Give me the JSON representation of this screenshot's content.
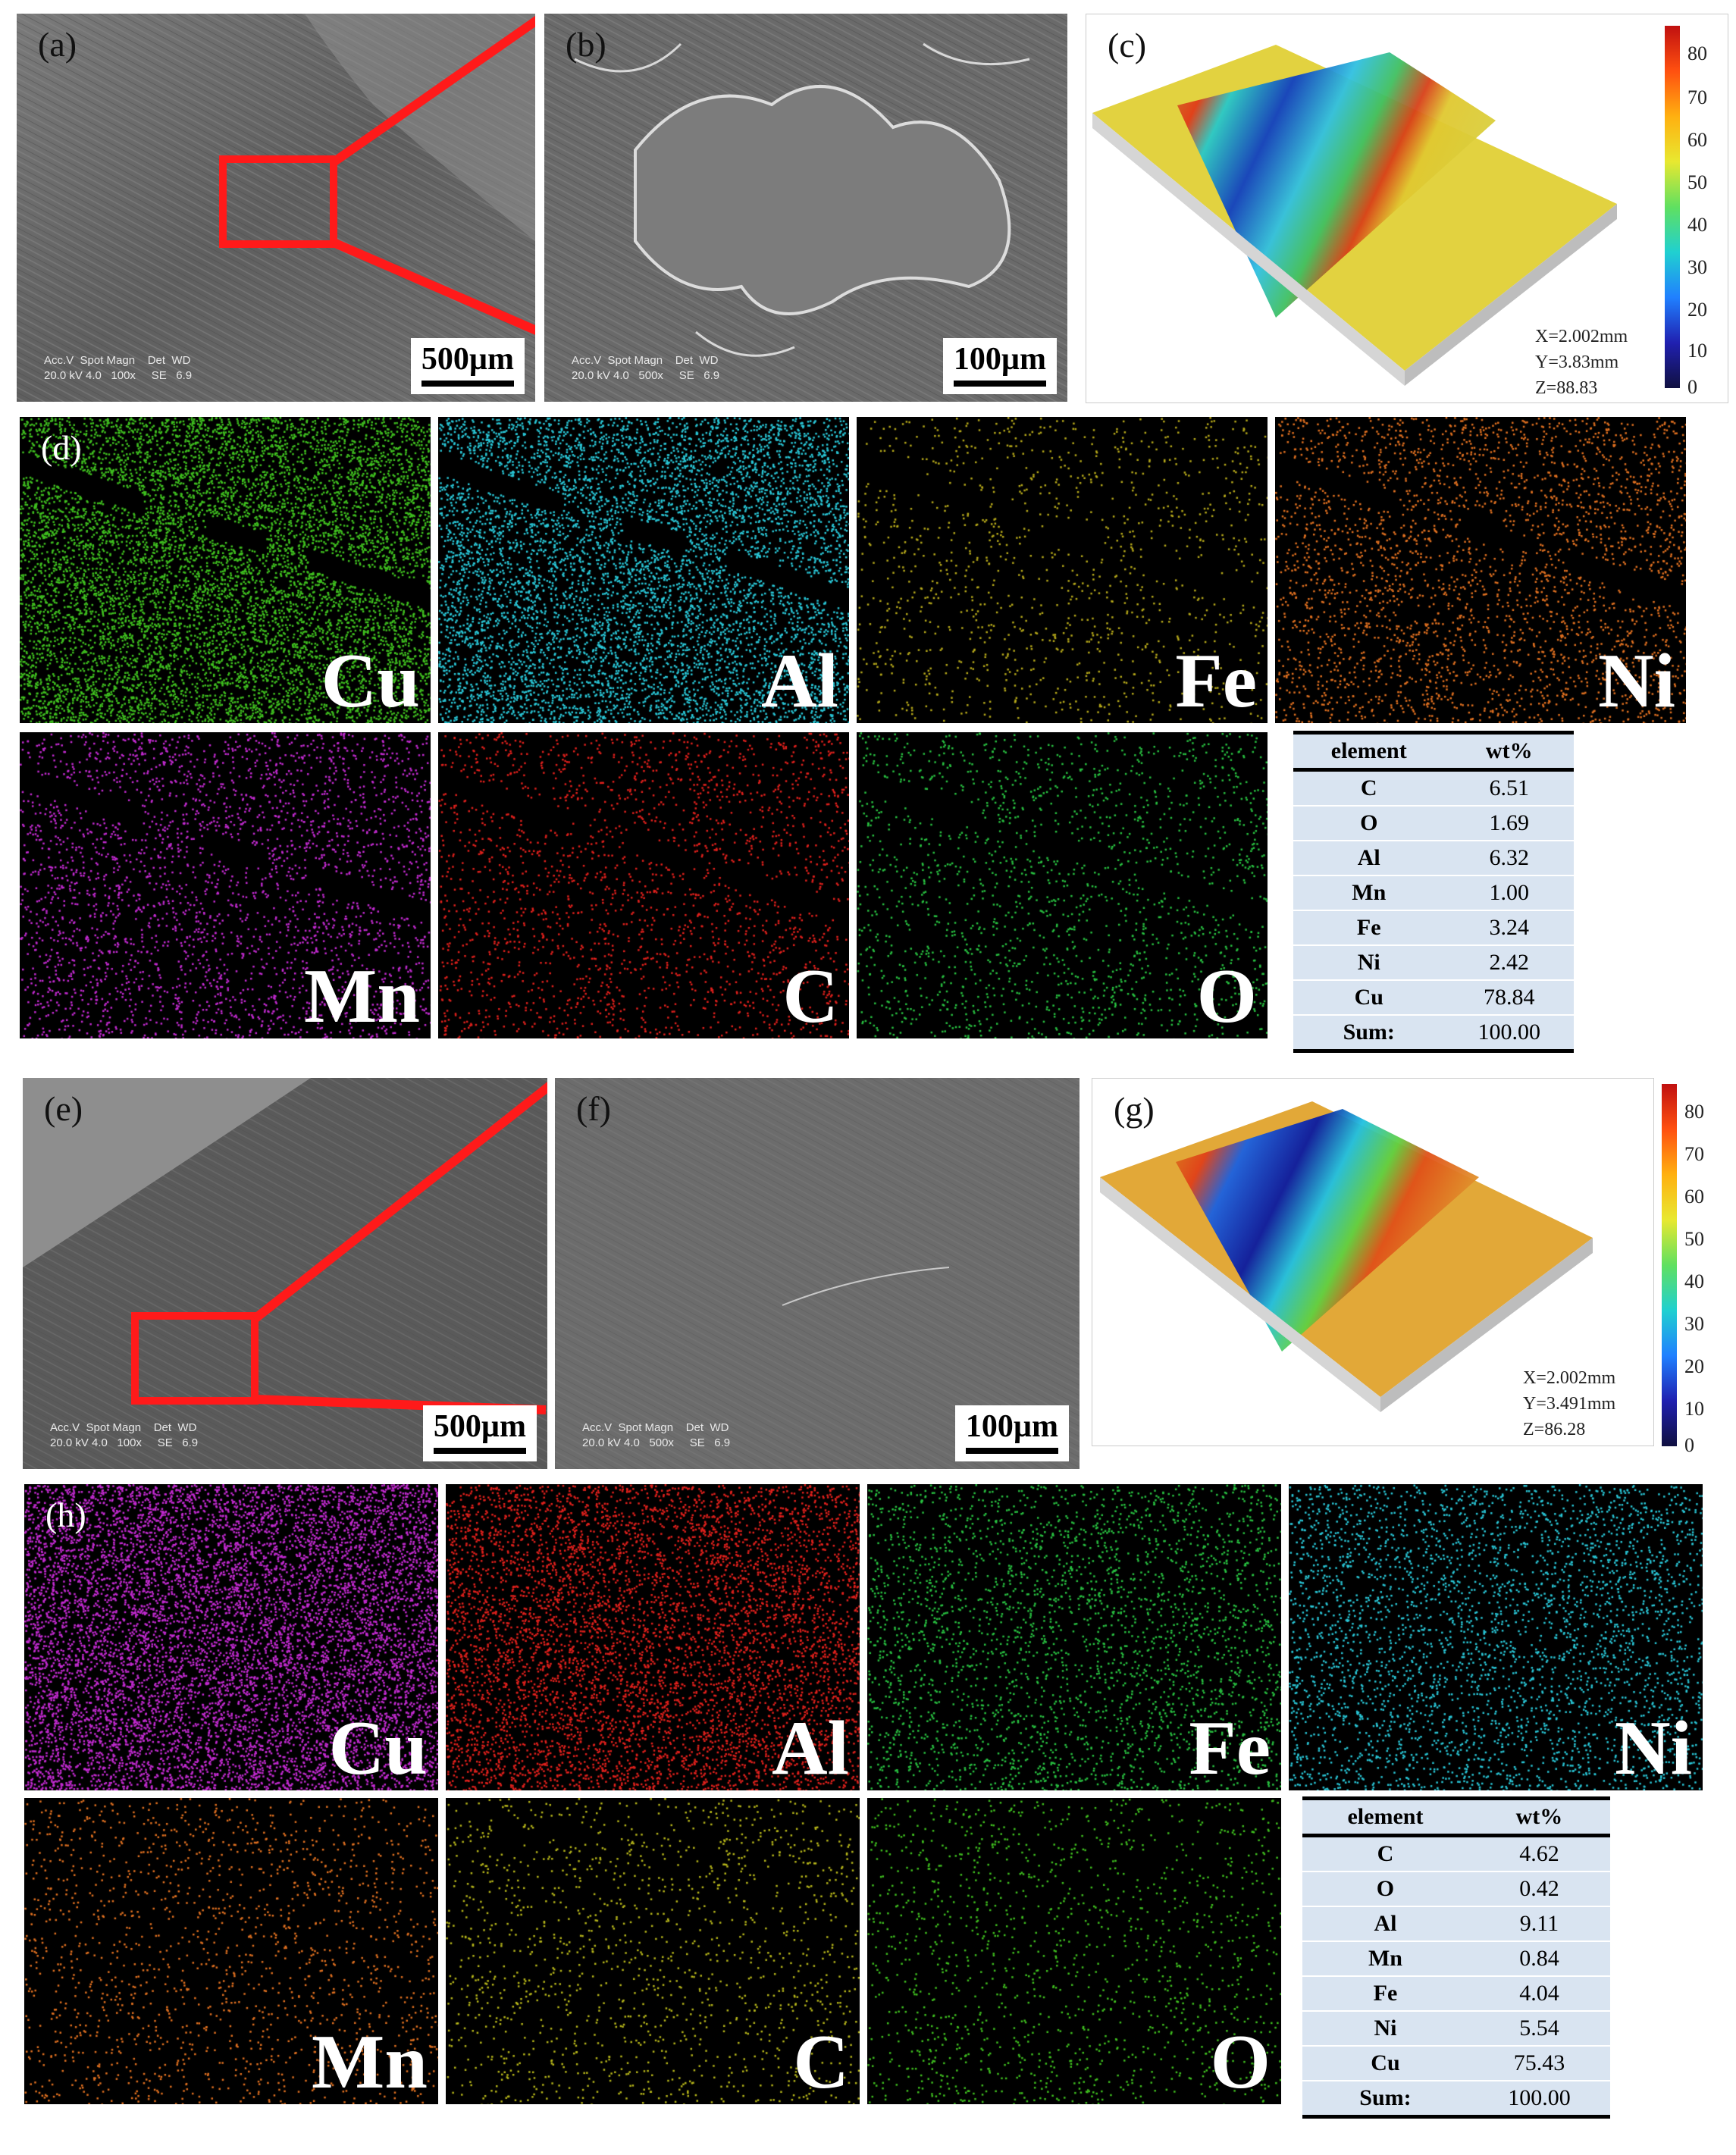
{
  "top": {
    "a": {
      "label": "(a)",
      "scale": "500µm",
      "meta": "Acc.V  Spot Magn    Det  WD\n20.0 kV 4.0   100x     SE   6.9",
      "bar_text": "500µm"
    },
    "b": {
      "label": "(b)",
      "scale": "100µm",
      "meta": "Acc.V  Spot Magn    Det  WD\n20.0 kV 4.0   500x     SE   6.9",
      "bar_text": "100µm"
    },
    "c": {
      "label": "(c)",
      "dims": [
        "X=2.002mm",
        "Y=3.83mm",
        "Z=88.83"
      ],
      "cbar": [
        "80",
        "70",
        "60",
        "50",
        "40",
        "30",
        "20",
        "10",
        "0"
      ]
    },
    "d": {
      "label": "(d)",
      "elements": [
        "Cu",
        "Al",
        "Fe",
        "Ni",
        "Mn",
        "C",
        "O"
      ]
    },
    "table": {
      "headers": [
        "element",
        "wt%"
      ],
      "rows": [
        [
          "C",
          "6.51"
        ],
        [
          "O",
          "1.69"
        ],
        [
          "Al",
          "6.32"
        ],
        [
          "Mn",
          "1.00"
        ],
        [
          "Fe",
          "3.24"
        ],
        [
          "Ni",
          "2.42"
        ],
        [
          "Cu",
          "78.84"
        ],
        [
          "Sum:",
          "100.00"
        ]
      ]
    }
  },
  "bottom": {
    "e": {
      "label": "(e)",
      "scale": "500µm",
      "meta": "Acc.V  Spot Magn    Det  WD\n20.0 kV 4.0   100x     SE   6.9",
      "bar_text": "500µm"
    },
    "f": {
      "label": "(f)",
      "scale": "100µm",
      "meta": "Acc.V  Spot Magn    Det  WD\n20.0 kV 4.0   500x     SE   6.9",
      "bar_text": "100µm"
    },
    "g": {
      "label": "(g)",
      "dims": [
        "X=2.002mm",
        "Y=3.491mm",
        "Z=86.28"
      ],
      "cbar": [
        "80",
        "70",
        "60",
        "50",
        "40",
        "30",
        "20",
        "10",
        "0"
      ]
    },
    "h": {
      "label": "(h)",
      "elements": [
        "Cu",
        "Al",
        "Fe",
        "Ni",
        "Mn",
        "C",
        "O"
      ]
    },
    "table": {
      "headers": [
        "element",
        "wt%"
      ],
      "rows": [
        [
          "C",
          "4.62"
        ],
        [
          "O",
          "0.42"
        ],
        [
          "Al",
          "9.11"
        ],
        [
          "Mn",
          "0.84"
        ],
        [
          "Fe",
          "4.04"
        ],
        [
          "Ni",
          "5.54"
        ],
        [
          "Cu",
          "75.43"
        ],
        [
          "Sum:",
          "100.00"
        ]
      ]
    }
  },
  "colors": {
    "d_maps": [
      "#3fbf1f",
      "#29c6d6",
      "#b5a81a",
      "#e07020",
      "#c22ad0",
      "#e0201c",
      "#28c040"
    ],
    "h_maps": [
      "#c22ad0",
      "#e0201c",
      "#28c040",
      "#29c6d6",
      "#e07020",
      "#b5b51a",
      "#3fbf1f"
    ],
    "arrow": "#ff1a1a"
  }
}
